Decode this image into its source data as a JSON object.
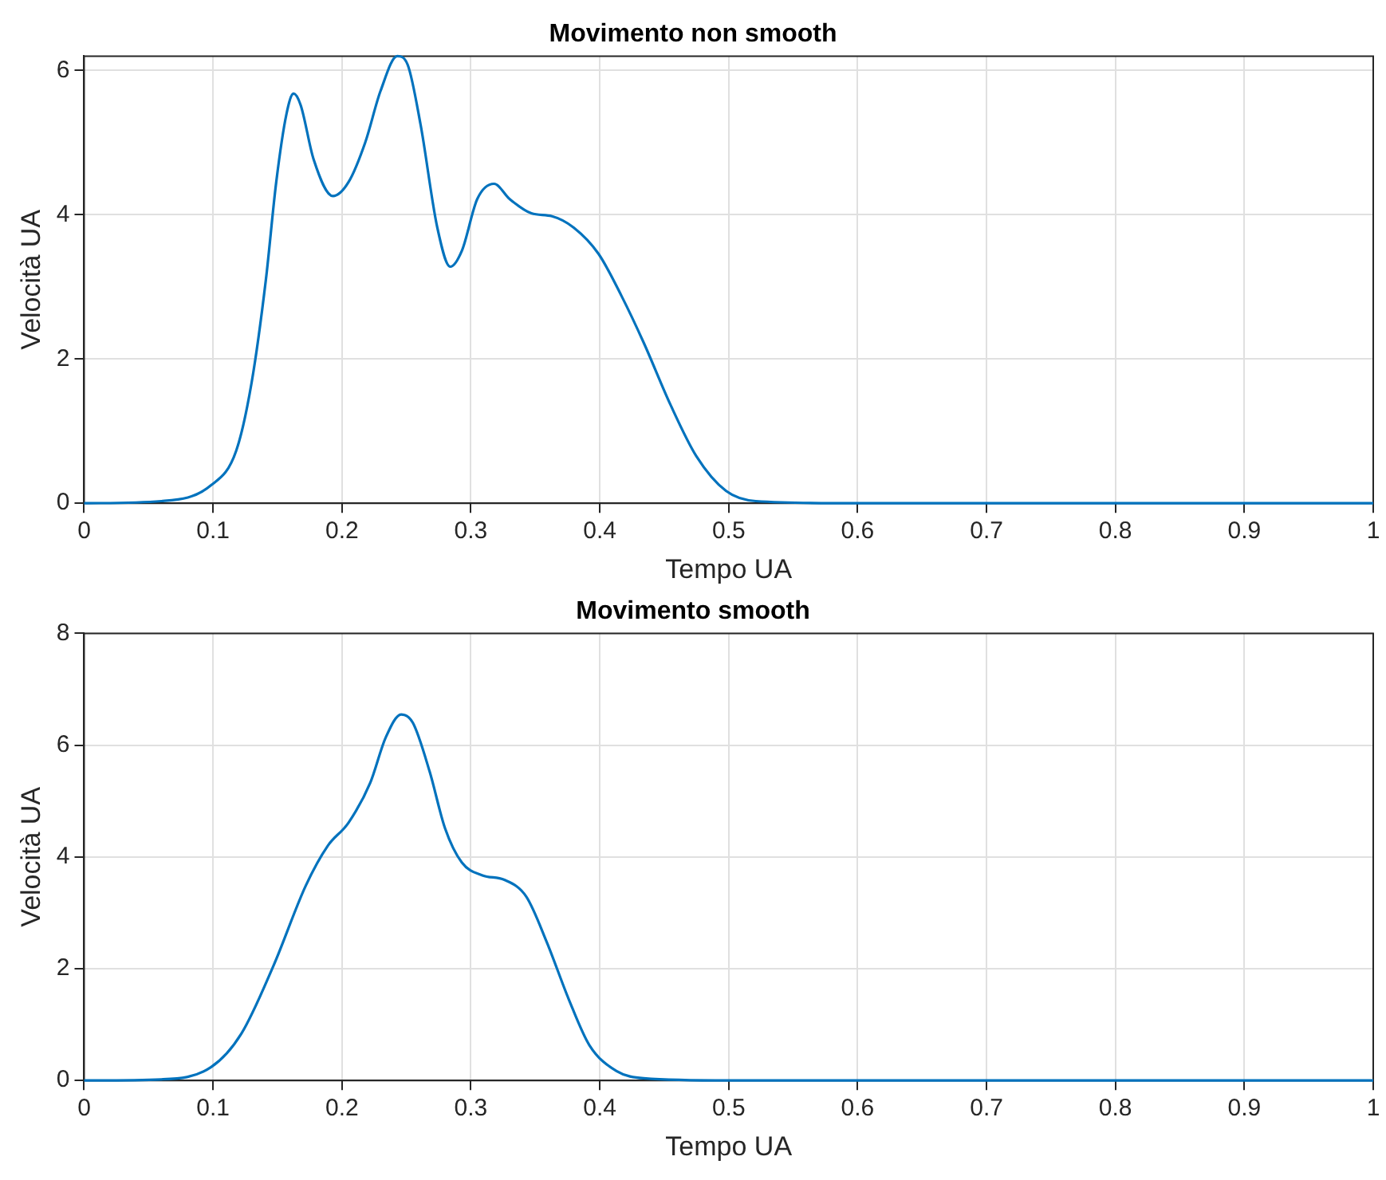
{
  "chart_data": [
    {
      "type": "line",
      "title": "Movimento non smooth",
      "xlabel": "Tempo UA",
      "ylabel": "Velocità UA",
      "xlim": [
        0,
        1
      ],
      "ylim": [
        0,
        6.2
      ],
      "xticks": [
        0,
        0.1,
        0.2,
        0.3,
        0.4,
        0.5,
        0.6,
        0.7,
        0.8,
        0.9,
        1
      ],
      "yticks": [
        0,
        2,
        4,
        6
      ],
      "grid": true,
      "marker": "none",
      "x": [
        0,
        0.06,
        0.0985,
        0.118,
        0.13,
        0.141,
        0.149,
        0.157,
        0.1625,
        0.168,
        0.178,
        0.193,
        0.205,
        0.218,
        0.23,
        0.243,
        0.251,
        0.261,
        0.274,
        0.284,
        0.293,
        0.305,
        0.318,
        0.33,
        0.347,
        0.363,
        0.38,
        0.399,
        0.417,
        0.434,
        0.455,
        0.475,
        0.498,
        0.521,
        0.6,
        0.7,
        0.8,
        0.9,
        1
      ],
      "series": [
        {
          "color": "#0072bd",
          "values": [
            0,
            0.03,
            0.25,
            0.73,
            1.68,
            3.1,
            4.45,
            5.4,
            5.68,
            5.52,
            4.77,
            4.26,
            4.45,
            5.0,
            5.72,
            6.2,
            6.08,
            5.25,
            3.82,
            3.28,
            3.5,
            4.22,
            4.43,
            4.22,
            4.02,
            3.98,
            3.82,
            3.46,
            2.87,
            2.23,
            1.36,
            0.65,
            0.17,
            0.03,
            0,
            0,
            0,
            0,
            0
          ]
        }
      ]
    },
    {
      "type": "line",
      "title": "Movimento smooth",
      "xlabel": "Tempo UA",
      "ylabel": "Velocità UA",
      "xlim": [
        0,
        1
      ],
      "ylim": [
        0,
        8
      ],
      "xticks": [
        0,
        0.1,
        0.2,
        0.3,
        0.4,
        0.5,
        0.6,
        0.7,
        0.8,
        0.9,
        1
      ],
      "yticks": [
        0,
        2,
        4,
        6,
        8
      ],
      "grid": true,
      "marker": "none",
      "x": [
        0,
        0.06,
        0.0985,
        0.122,
        0.147,
        0.172,
        0.189,
        0.205,
        0.222,
        0.234,
        0.246,
        0.255,
        0.268,
        0.28,
        0.293,
        0.309,
        0.326,
        0.343,
        0.359,
        0.376,
        0.392,
        0.413,
        0.434,
        0.5,
        0.6,
        0.7,
        0.8,
        0.9,
        1
      ],
      "series": [
        {
          "color": "#0072bd",
          "values": [
            0,
            0.02,
            0.24,
            0.84,
            2.06,
            3.49,
            4.2,
            4.61,
            5.33,
            6.14,
            6.55,
            6.4,
            5.53,
            4.51,
            3.9,
            3.67,
            3.59,
            3.29,
            2.47,
            1.45,
            0.63,
            0.17,
            0.04,
            0,
            0,
            0,
            0,
            0,
            0
          ]
        }
      ]
    }
  ]
}
